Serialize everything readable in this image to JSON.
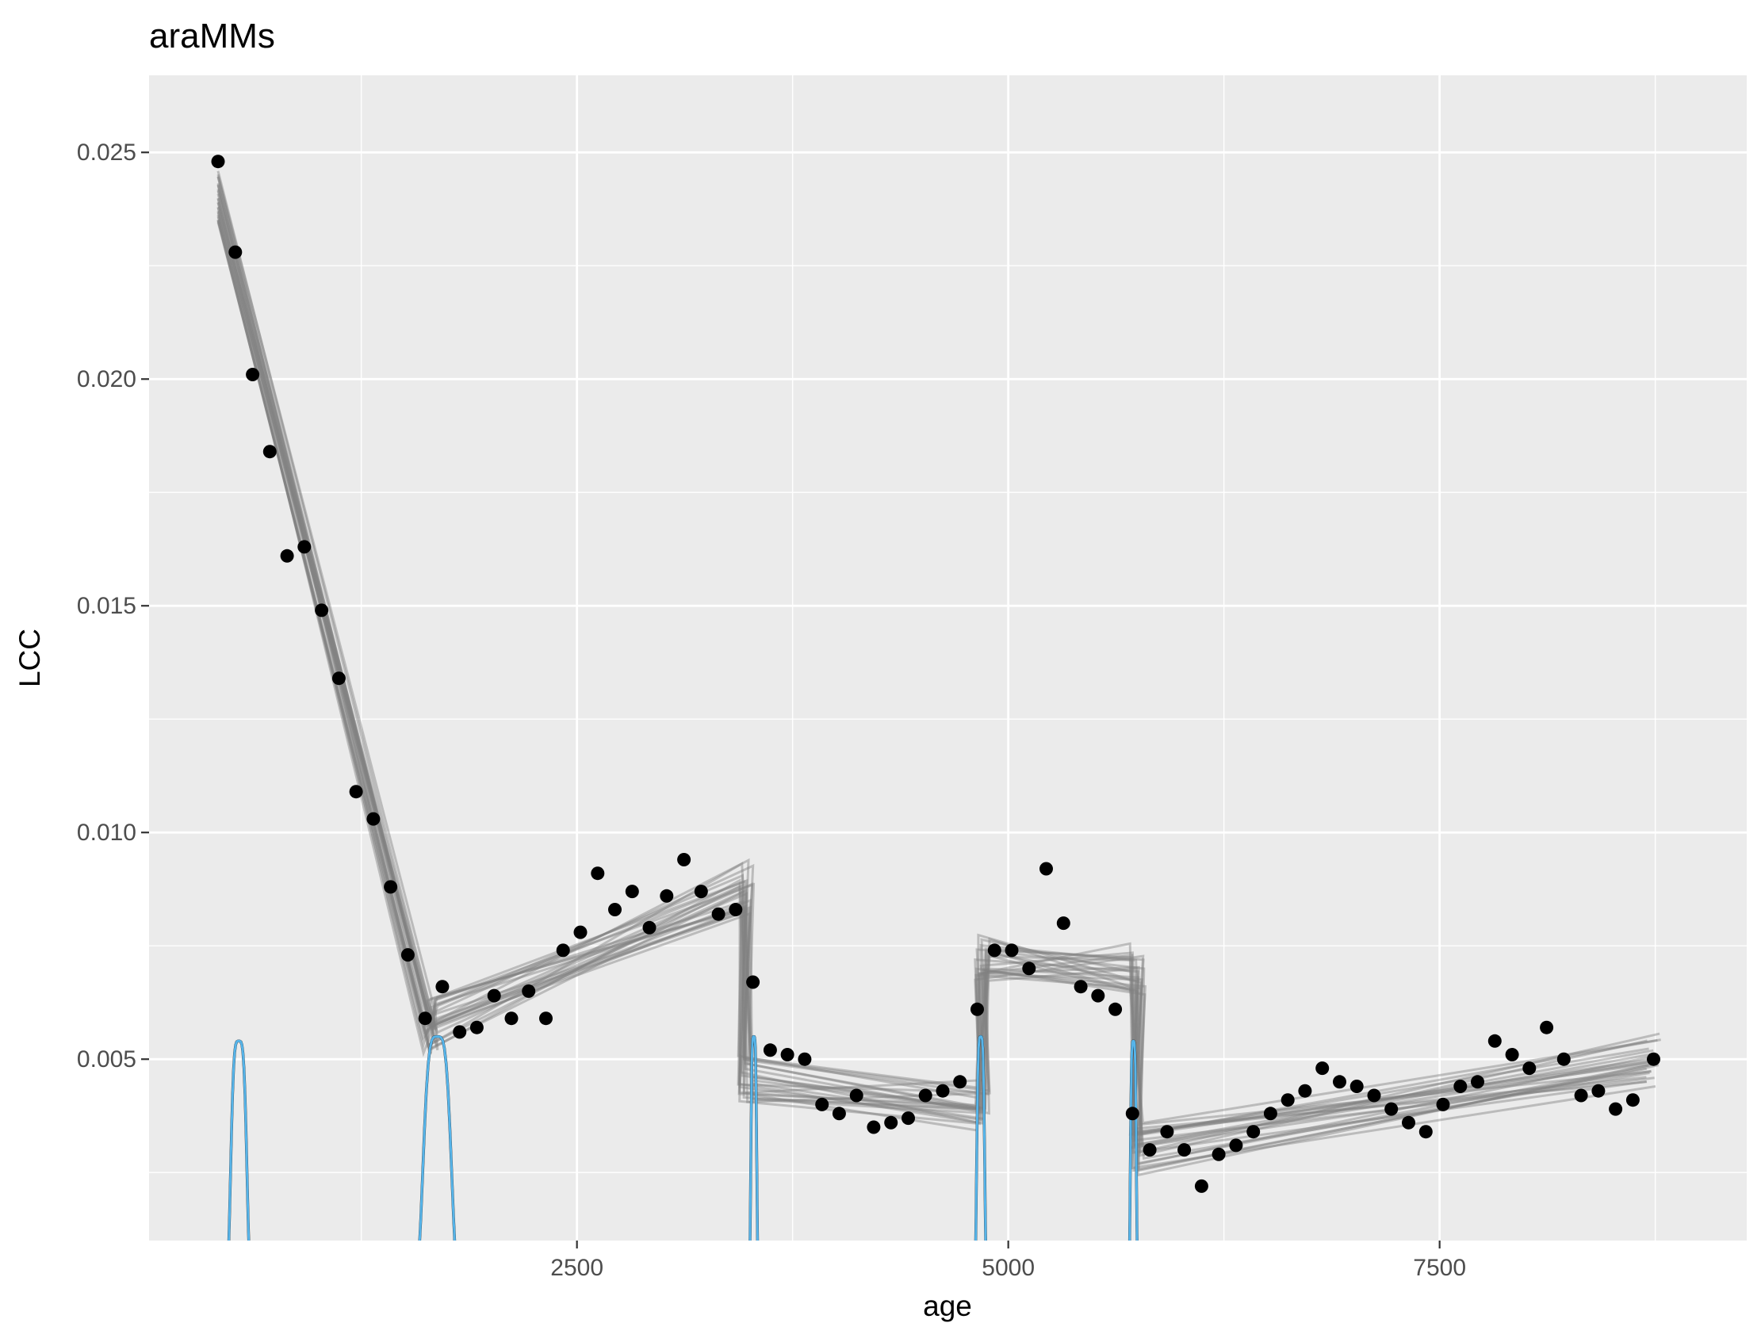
{
  "chart_data": {
    "type": "scatter",
    "title": "araMMs",
    "xlabel": "age",
    "ylabel": "LCC",
    "xlim": [
      20,
      9280
    ],
    "ylim": [
      0.001,
      0.0267
    ],
    "x_ticks": [
      2500,
      5000,
      7500
    ],
    "x_tick_labels": [
      "2500",
      "5000",
      "7500"
    ],
    "y_ticks": [
      0.005,
      0.01,
      0.015,
      0.02,
      0.025
    ],
    "y_tick_labels": [
      "0.005",
      "0.010",
      "0.015",
      "0.020",
      "0.025"
    ],
    "grid": true,
    "legend": "none",
    "points": [
      [
        420,
        0.0248
      ],
      [
        520,
        0.0228
      ],
      [
        620,
        0.0201
      ],
      [
        720,
        0.0184
      ],
      [
        820,
        0.0161
      ],
      [
        920,
        0.0163
      ],
      [
        1020,
        0.0149
      ],
      [
        1120,
        0.0134
      ],
      [
        1220,
        0.0109
      ],
      [
        1320,
        0.0103
      ],
      [
        1420,
        0.0088
      ],
      [
        1520,
        0.0073
      ],
      [
        1620,
        0.0059
      ],
      [
        1720,
        0.0066
      ],
      [
        1820,
        0.0056
      ],
      [
        1920,
        0.0057
      ],
      [
        2020,
        0.0064
      ],
      [
        2120,
        0.0059
      ],
      [
        2220,
        0.0065
      ],
      [
        2320,
        0.0059
      ],
      [
        2420,
        0.0074
      ],
      [
        2520,
        0.0078
      ],
      [
        2620,
        0.0091
      ],
      [
        2720,
        0.0083
      ],
      [
        2820,
        0.0087
      ],
      [
        2920,
        0.0079
      ],
      [
        3020,
        0.0086
      ],
      [
        3120,
        0.0094
      ],
      [
        3220,
        0.0087
      ],
      [
        3320,
        0.0082
      ],
      [
        3420,
        0.0083
      ],
      [
        3520,
        0.0067
      ],
      [
        3620,
        0.0052
      ],
      [
        3720,
        0.0051
      ],
      [
        3820,
        0.005
      ],
      [
        3920,
        0.004
      ],
      [
        4020,
        0.0038
      ],
      [
        4120,
        0.0042
      ],
      [
        4220,
        0.0035
      ],
      [
        4320,
        0.0036
      ],
      [
        4420,
        0.0037
      ],
      [
        4520,
        0.0042
      ],
      [
        4620,
        0.0043
      ],
      [
        4720,
        0.0045
      ],
      [
        4820,
        0.0061
      ],
      [
        4920,
        0.0074
      ],
      [
        5020,
        0.0074
      ],
      [
        5120,
        0.007
      ],
      [
        5220,
        0.0092
      ],
      [
        5320,
        0.008
      ],
      [
        5420,
        0.0066
      ],
      [
        5520,
        0.0064
      ],
      [
        5620,
        0.0061
      ],
      [
        5720,
        0.0038
      ],
      [
        5820,
        0.003
      ],
      [
        5920,
        0.0034
      ],
      [
        6020,
        0.003
      ],
      [
        6120,
        0.0022
      ],
      [
        6220,
        0.0029
      ],
      [
        6320,
        0.0031
      ],
      [
        6420,
        0.0034
      ],
      [
        6520,
        0.0038
      ],
      [
        6620,
        0.0041
      ],
      [
        6720,
        0.0043
      ],
      [
        6820,
        0.0048
      ],
      [
        6920,
        0.0045
      ],
      [
        7020,
        0.0044
      ],
      [
        7120,
        0.0042
      ],
      [
        7220,
        0.0039
      ],
      [
        7320,
        0.0036
      ],
      [
        7420,
        0.0034
      ],
      [
        7520,
        0.004
      ],
      [
        7620,
        0.0044
      ],
      [
        7720,
        0.0045
      ],
      [
        7820,
        0.0054
      ],
      [
        7920,
        0.0051
      ],
      [
        8020,
        0.0048
      ],
      [
        8120,
        0.0057
      ],
      [
        8220,
        0.005
      ],
      [
        8320,
        0.0042
      ],
      [
        8420,
        0.0043
      ],
      [
        8520,
        0.0039
      ],
      [
        8620,
        0.0041
      ],
      [
        8740,
        0.005
      ]
    ],
    "fit_segments": [
      {
        "x_start": 420,
        "x_end": 1650,
        "y_start": 0.024,
        "y_end": 0.0057
      },
      {
        "x_start": 1650,
        "x_end": 3480,
        "y_start": 0.0058,
        "y_end": 0.0088
      },
      {
        "x_start": 3480,
        "x_end": 4850,
        "y_start": 0.0045,
        "y_end": 0.004
      },
      {
        "x_start": 4850,
        "x_end": 5750,
        "y_start": 0.0072,
        "y_end": 0.007
      },
      {
        "x_start": 5750,
        "x_end": 8740,
        "y_start": 0.003,
        "y_end": 0.005
      }
    ],
    "density_peaks": [
      {
        "x_start": 420,
        "x_end": 660,
        "peak_x": 530,
        "peak_y": 0.0054
      },
      {
        "x_start": 1480,
        "x_end": 1900,
        "peak_x": 1700,
        "peak_y": 0.0055
      },
      {
        "x_start": 3480,
        "x_end": 3570,
        "peak_x": 3500,
        "peak_y": 0.0055
      },
      {
        "x_start": 4780,
        "x_end": 4900,
        "peak_x": 4830,
        "peak_y": 0.0055
      },
      {
        "x_start": 5680,
        "x_end": 5770,
        "peak_x": 5720,
        "peak_y": 0.0054
      }
    ],
    "colors": {
      "panel": "#ebebeb",
      "grid": "#ffffff",
      "point": "#000000",
      "fit_line": "#808080",
      "density": "#56b4e9",
      "density_dark": "#1a1a1a"
    }
  }
}
